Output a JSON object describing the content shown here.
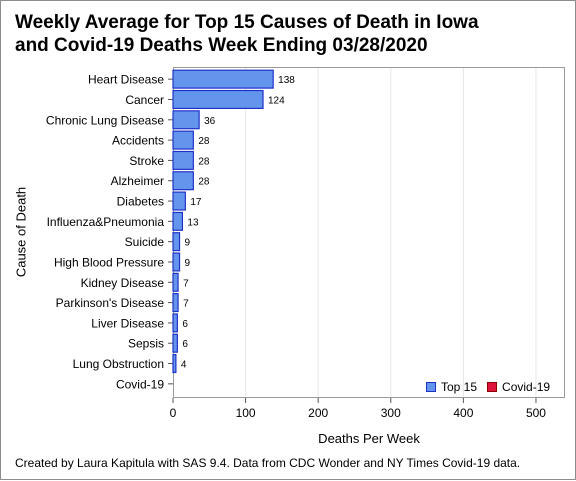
{
  "title_line1": "Weekly Average for Top 15 Causes of Death in Iowa",
  "title_line2": "and Covid-19 Deaths Week Ending 03/28/2020",
  "footnote": "Created by Laura Kapitula with SAS 9.4. Data from CDC Wonder and NY Times Covid-19 data.",
  "colors": {
    "top15": "#6495ed",
    "top15_border": "#1f32c8",
    "covid": "#dc143c",
    "covid_border": "#8b0000"
  },
  "chart_data": {
    "type": "bar",
    "orientation": "horizontal",
    "title": "Weekly Average for Top 15 Causes of Death in Iowa and Covid-19 Deaths Week Ending 03/28/2020",
    "xlabel": "Deaths Per Week",
    "ylabel": "Cause of Death",
    "xlim": [
      0,
      540
    ],
    "xticks": [
      0,
      100,
      200,
      300,
      400,
      500
    ],
    "grid": true,
    "legend_position": "bottom-right",
    "categories": [
      "Heart Disease",
      "Cancer",
      "Chronic Lung Disease",
      "Accidents",
      "Stroke",
      "Alzheimer",
      "Diabetes",
      "Influenza&Pneumonia",
      "Suicide",
      "High Blood Pressure",
      "Kidney Disease",
      "Parkinson's Disease",
      "Liver Disease",
      "Sepsis",
      "Lung Obstruction",
      "Covid-19"
    ],
    "series": [
      {
        "name": "Top 15",
        "values": [
          138,
          124,
          36,
          28,
          28,
          28,
          17,
          13,
          9,
          9,
          7,
          7,
          6,
          6,
          4,
          null
        ]
      },
      {
        "name": "Covid-19",
        "values": [
          null,
          null,
          null,
          null,
          null,
          null,
          null,
          null,
          null,
          null,
          null,
          null,
          null,
          null,
          null,
          0
        ]
      }
    ],
    "data_labels": [
      "138",
      "124",
      "36",
      "28",
      "28",
      "28",
      "17",
      "13",
      "9",
      "9",
      "7",
      "7",
      "6",
      "6",
      "4",
      ""
    ]
  }
}
